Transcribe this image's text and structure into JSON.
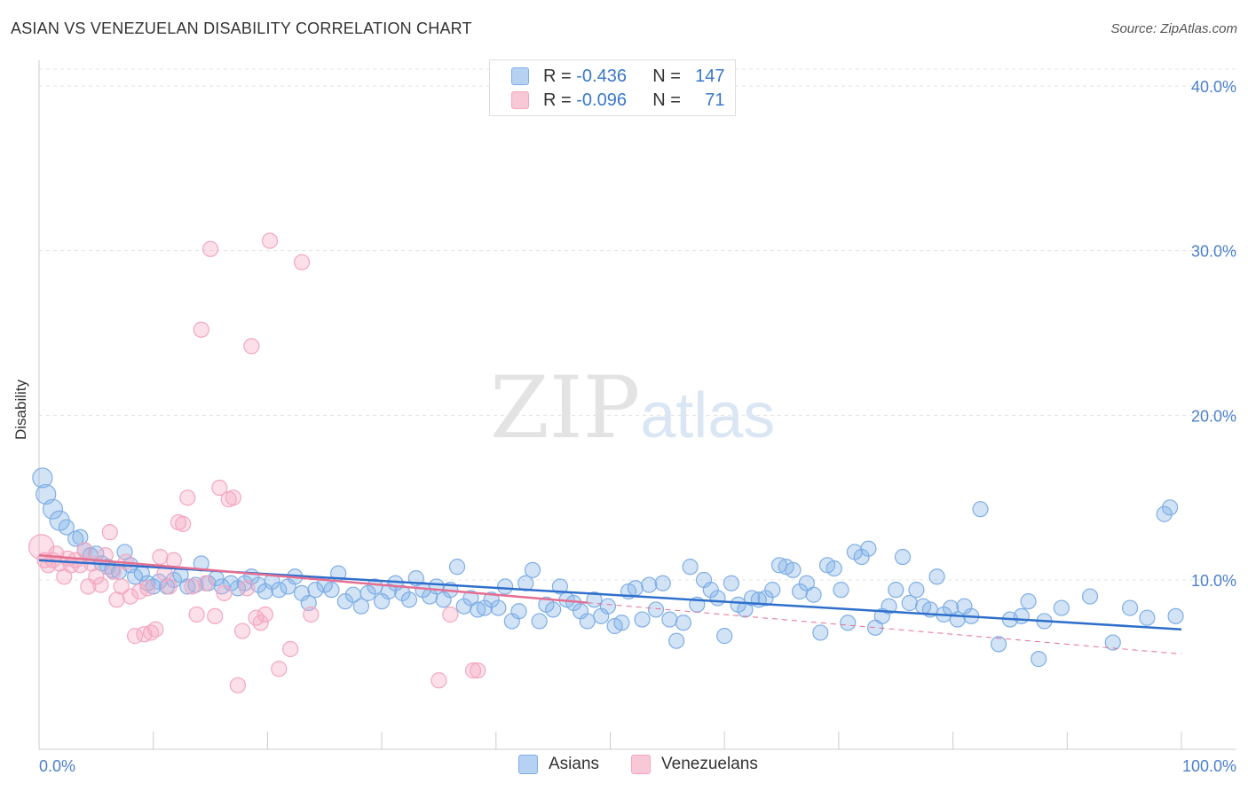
{
  "title": "ASIAN VS VENEZUELAN DISABILITY CORRELATION CHART",
  "source": "Source: ZipAtlas.com",
  "watermark": {
    "zip": "ZIP",
    "atlas": "atlas"
  },
  "legend": {
    "r_label": "R =",
    "n_label": "N =",
    "rows": [
      {
        "r": "-0.436",
        "n": "147"
      },
      {
        "r": "-0.096",
        "n": "71"
      }
    ]
  },
  "chart_data": {
    "type": "scatter",
    "title": "ASIAN VS VENEZUELAN DISABILITY CORRELATION CHART",
    "xlabel": "",
    "ylabel": "Disability",
    "xlim": [
      0,
      100
    ],
    "ylim": [
      0,
      40
    ],
    "x_ticks": [
      "0.0%",
      "100.0%"
    ],
    "y_ticks": [
      "10.0%",
      "20.0%",
      "30.0%",
      "40.0%"
    ],
    "y_tick_values": [
      10,
      20,
      30,
      40
    ],
    "grid": "horizontal dashed",
    "legend_position": "top-center",
    "colors": {
      "asians": "#7eaee6",
      "asians_line": "#2f6fcc",
      "venezuelans": "#f4a6bf",
      "venezuelans_line": "#e56f92",
      "axis_text": "#4a7fcc"
    },
    "series": [
      {
        "name": "Asians",
        "trend": {
          "x": [
            0,
            100
          ],
          "y": [
            11.2,
            7.0
          ]
        },
        "points": [
          [
            0.3,
            16.2
          ],
          [
            0.6,
            15.2
          ],
          [
            1.2,
            14.3
          ],
          [
            1.8,
            13.6
          ],
          [
            2.4,
            13.2
          ],
          [
            3.2,
            12.5
          ],
          [
            3.6,
            12.6
          ],
          [
            4,
            11.8
          ],
          [
            4.5,
            11.5
          ],
          [
            5,
            11.6
          ],
          [
            5.5,
            11
          ],
          [
            6,
            10.8
          ],
          [
            6.4,
            10.6
          ],
          [
            7,
            10.5
          ],
          [
            7.5,
            11.7
          ],
          [
            8,
            10.9
          ],
          [
            8.4,
            10.2
          ],
          [
            9,
            10.4
          ],
          [
            9.5,
            9.8
          ],
          [
            10,
            9.6
          ],
          [
            10.5,
            9.9
          ],
          [
            11.2,
            9.6
          ],
          [
            11.8,
            10
          ],
          [
            12.4,
            10.3
          ],
          [
            13,
            9.6
          ],
          [
            13.7,
            9.7
          ],
          [
            14.2,
            11
          ],
          [
            14.8,
            9.8
          ],
          [
            15.5,
            10.1
          ],
          [
            16,
            9.6
          ],
          [
            16.8,
            9.8
          ],
          [
            17.4,
            9.5
          ],
          [
            18,
            9.8
          ],
          [
            18.6,
            10.2
          ],
          [
            19.2,
            9.7
          ],
          [
            19.8,
            9.3
          ],
          [
            20.4,
            9.9
          ],
          [
            21,
            9.4
          ],
          [
            21.8,
            9.6
          ],
          [
            22.4,
            10.2
          ],
          [
            23,
            9.2
          ],
          [
            23.6,
            8.6
          ],
          [
            24.2,
            9.4
          ],
          [
            25,
            9.7
          ],
          [
            25.6,
            9.4
          ],
          [
            26.2,
            10.4
          ],
          [
            26.8,
            8.7
          ],
          [
            27.5,
            9.1
          ],
          [
            28.2,
            8.4
          ],
          [
            28.8,
            9.2
          ],
          [
            29.4,
            9.6
          ],
          [
            30,
            8.7
          ],
          [
            30.6,
            9.3
          ],
          [
            31.2,
            9.8
          ],
          [
            31.8,
            9.2
          ],
          [
            32.4,
            8.8
          ],
          [
            33,
            10.1
          ],
          [
            33.6,
            9.4
          ],
          [
            34.2,
            9
          ],
          [
            34.8,
            9.6
          ],
          [
            35.4,
            8.8
          ],
          [
            36,
            9.4
          ],
          [
            36.6,
            10.8
          ],
          [
            37.2,
            8.4
          ],
          [
            37.8,
            8.9
          ],
          [
            38.4,
            8.2
          ],
          [
            39,
            8.3
          ],
          [
            39.6,
            8.8
          ],
          [
            40.2,
            8.3
          ],
          [
            40.8,
            9.6
          ],
          [
            41.4,
            7.5
          ],
          [
            42,
            8.1
          ],
          [
            42.6,
            9.8
          ],
          [
            43.2,
            10.6
          ],
          [
            43.8,
            7.5
          ],
          [
            44.4,
            8.5
          ],
          [
            45,
            8.2
          ],
          [
            45.6,
            9.6
          ],
          [
            46.2,
            8.8
          ],
          [
            46.8,
            8.6
          ],
          [
            47.4,
            8.1
          ],
          [
            48,
            7.5
          ],
          [
            48.6,
            8.8
          ],
          [
            49.2,
            7.8
          ],
          [
            49.8,
            8.4
          ],
          [
            50.4,
            7.2
          ],
          [
            51,
            7.4
          ],
          [
            51.6,
            9.3
          ],
          [
            52.2,
            9.5
          ],
          [
            52.8,
            7.6
          ],
          [
            53.4,
            9.7
          ],
          [
            54,
            8.2
          ],
          [
            54.6,
            9.8
          ],
          [
            55.2,
            7.6
          ],
          [
            55.8,
            6.3
          ],
          [
            56.4,
            7.4
          ],
          [
            57,
            10.8
          ],
          [
            57.6,
            8.5
          ],
          [
            58.2,
            10
          ],
          [
            58.8,
            9.4
          ],
          [
            59.4,
            8.9
          ],
          [
            60,
            6.6
          ],
          [
            60.6,
            9.8
          ],
          [
            61.2,
            8.5
          ],
          [
            61.8,
            8.2
          ],
          [
            62.4,
            8.9
          ],
          [
            63,
            8.8
          ],
          [
            63.6,
            8.9
          ],
          [
            64.2,
            9.4
          ],
          [
            64.8,
            10.9
          ],
          [
            65.4,
            10.8
          ],
          [
            66,
            10.6
          ],
          [
            66.6,
            9.3
          ],
          [
            67.2,
            9.8
          ],
          [
            67.8,
            9.1
          ],
          [
            68.4,
            6.8
          ],
          [
            69,
            10.9
          ],
          [
            69.6,
            10.7
          ],
          [
            70.2,
            9.4
          ],
          [
            70.8,
            7.4
          ],
          [
            71.4,
            11.7
          ],
          [
            72,
            11.4
          ],
          [
            72.6,
            11.9
          ],
          [
            73.2,
            7.1
          ],
          [
            73.8,
            7.8
          ],
          [
            74.4,
            8.4
          ],
          [
            75,
            9.4
          ],
          [
            75.6,
            11.4
          ],
          [
            76.2,
            8.6
          ],
          [
            76.8,
            9.4
          ],
          [
            77.4,
            8.4
          ],
          [
            78,
            8.2
          ],
          [
            78.6,
            10.2
          ],
          [
            79.2,
            7.9
          ],
          [
            79.8,
            8.3
          ],
          [
            80.4,
            7.6
          ],
          [
            81,
            8.4
          ],
          [
            81.6,
            7.8
          ],
          [
            82.4,
            14.3
          ],
          [
            84,
            6.1
          ],
          [
            85,
            7.6
          ],
          [
            86,
            7.8
          ],
          [
            86.6,
            8.7
          ],
          [
            87.5,
            5.2
          ],
          [
            88,
            7.5
          ],
          [
            89.5,
            8.3
          ],
          [
            92,
            9
          ],
          [
            94,
            6.2
          ],
          [
            95.5,
            8.3
          ],
          [
            97,
            7.7
          ],
          [
            98.5,
            14
          ],
          [
            99,
            14.4
          ],
          [
            99.5,
            7.8
          ]
        ]
      },
      {
        "name": "Venezuelans",
        "trend": {
          "x": [
            0,
            100
          ],
          "y": [
            11.5,
            5.5
          ]
        },
        "points": [
          [
            0.2,
            12
          ],
          [
            0.5,
            11.2
          ],
          [
            0.8,
            10.9
          ],
          [
            1.2,
            11.2
          ],
          [
            1.5,
            11.6
          ],
          [
            1.8,
            11
          ],
          [
            2.2,
            10.2
          ],
          [
            2.5,
            11.3
          ],
          [
            2.8,
            10.9
          ],
          [
            3.2,
            11.2
          ],
          [
            3.6,
            10.9
          ],
          [
            4,
            11.8
          ],
          [
            4.3,
            9.6
          ],
          [
            4.6,
            11
          ],
          [
            5,
            10.2
          ],
          [
            5.4,
            9.7
          ],
          [
            5.8,
            11.5
          ],
          [
            6.2,
            12.9
          ],
          [
            6.5,
            10.5
          ],
          [
            6.8,
            8.8
          ],
          [
            7.2,
            9.6
          ],
          [
            7.6,
            11.1
          ],
          [
            8,
            9
          ],
          [
            8.4,
            6.6
          ],
          [
            8.8,
            9.3
          ],
          [
            9.2,
            6.7
          ],
          [
            9.5,
            9.5
          ],
          [
            9.8,
            6.8
          ],
          [
            10.2,
            7
          ],
          [
            10.6,
            11.4
          ],
          [
            11,
            10.4
          ],
          [
            11.4,
            9.6
          ],
          [
            11.8,
            11.2
          ],
          [
            12.2,
            13.5
          ],
          [
            12.6,
            13.4
          ],
          [
            13,
            15
          ],
          [
            13.4,
            9.6
          ],
          [
            13.8,
            7.9
          ],
          [
            14.2,
            25.2
          ],
          [
            14.6,
            9.8
          ],
          [
            15,
            30.1
          ],
          [
            15.4,
            7.8
          ],
          [
            15.8,
            15.6
          ],
          [
            16.2,
            9.2
          ],
          [
            16.6,
            14.9
          ],
          [
            17,
            15
          ],
          [
            17.4,
            3.6
          ],
          [
            17.8,
            6.9
          ],
          [
            18.2,
            9.5
          ],
          [
            18.6,
            24.2
          ],
          [
            19,
            7.7
          ],
          [
            19.4,
            7.4
          ],
          [
            19.8,
            7.9
          ],
          [
            20.2,
            30.6
          ],
          [
            21,
            4.6
          ],
          [
            22,
            5.8
          ],
          [
            23,
            29.3
          ],
          [
            23.8,
            7.9
          ],
          [
            35,
            3.9
          ],
          [
            36,
            7.9
          ],
          [
            38,
            4.5
          ],
          [
            38.4,
            4.5
          ]
        ]
      }
    ]
  },
  "bottom_legend": [
    "Asians",
    "Venezuelans"
  ]
}
